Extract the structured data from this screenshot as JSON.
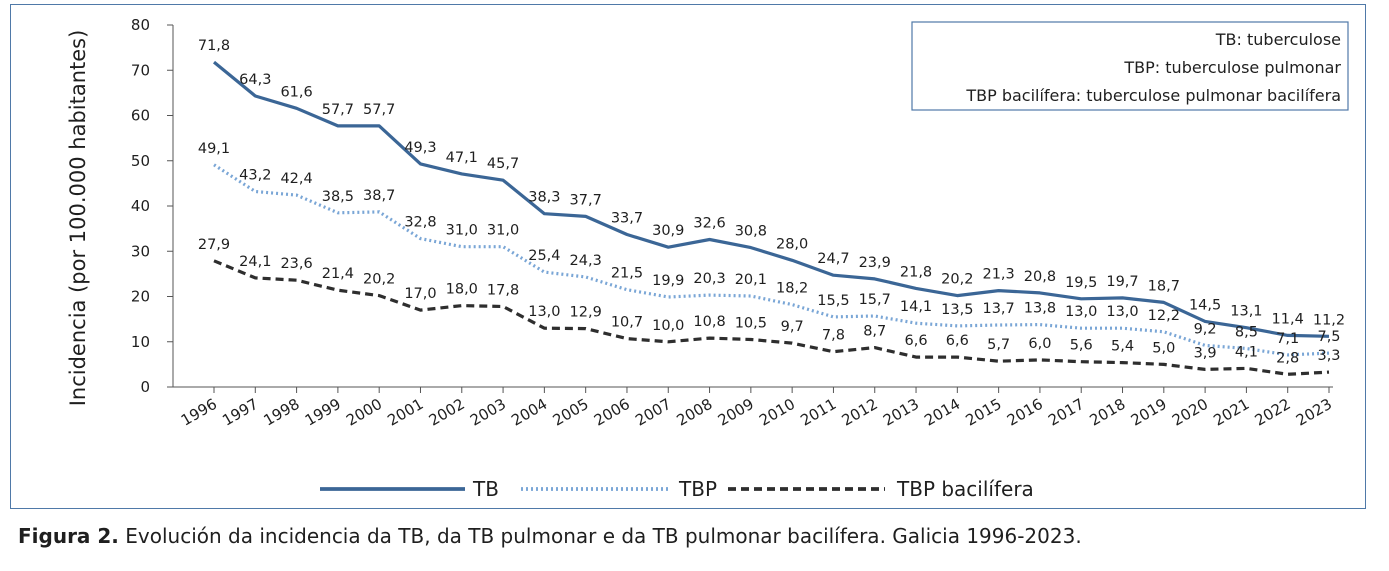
{
  "chart_data": {
    "type": "line",
    "title": "",
    "xlabel": "",
    "ylabel": "Incidencia (por 100.000 habitantes)",
    "ylim": [
      0,
      80
    ],
    "yticks": [
      0,
      10,
      20,
      30,
      40,
      50,
      60,
      70,
      80
    ],
    "categories": [
      "1996",
      "1997",
      "1998",
      "1999",
      "2000",
      "2001",
      "2002",
      "2003",
      "2004",
      "2005",
      "2006",
      "2007",
      "2008",
      "2009",
      "2010",
      "2011",
      "2012",
      "2013",
      "2014",
      "2015",
      "2016",
      "2017",
      "2018",
      "2019",
      "2020",
      "2021",
      "2022",
      "2023"
    ],
    "series": [
      {
        "name": "TB",
        "style": "solid",
        "color": "#3b6696",
        "values": [
          71.8,
          64.3,
          61.6,
          57.7,
          57.7,
          49.3,
          47.1,
          45.7,
          38.3,
          37.7,
          33.7,
          30.9,
          32.6,
          30.8,
          28.0,
          24.7,
          23.9,
          21.8,
          20.2,
          21.3,
          20.8,
          19.5,
          19.7,
          18.7,
          14.5,
          13.1,
          11.4,
          11.2
        ],
        "labels": [
          "71,8",
          "64,3",
          "61,6",
          "57,7",
          "57,7",
          "49,3",
          "47,1",
          "45,7",
          "38,3",
          "37,7",
          "33,7",
          "30,9",
          "32,6",
          "30,8",
          "28,0",
          "24,7",
          "23,9",
          "21,8",
          "20,2",
          "21,3",
          "20,8",
          "19,5",
          "19,7",
          "18,7",
          "14,5",
          "13,1",
          "11,4",
          "11,2"
        ]
      },
      {
        "name": "TBP",
        "style": "dotted",
        "color": "#7aa6d6",
        "values": [
          49.1,
          43.2,
          42.4,
          38.5,
          38.7,
          32.8,
          31.0,
          31.0,
          25.4,
          24.3,
          21.5,
          19.9,
          20.3,
          20.1,
          18.2,
          15.5,
          15.7,
          14.1,
          13.5,
          13.7,
          13.8,
          13.0,
          13.0,
          12.2,
          9.2,
          8.5,
          7.1,
          7.5
        ],
        "labels": [
          "49,1",
          "43,2",
          "42,4",
          "38,5",
          "38,7",
          "32,8",
          "31,0",
          "31,0",
          "25,4",
          "24,3",
          "21,5",
          "19,9",
          "20,3",
          "20,1",
          "18,2",
          "15,5",
          "15,7",
          "14,1",
          "13,5",
          "13,7",
          "13,8",
          "13,0",
          "13,0",
          "12,2",
          "9,2",
          "8,5",
          "7,1",
          "7,5"
        ]
      },
      {
        "name": "TBP bacilífera",
        "style": "dashed",
        "color": "#2e2e2e",
        "values": [
          27.9,
          24.1,
          23.6,
          21.4,
          20.2,
          17.0,
          18.0,
          17.8,
          13.0,
          12.9,
          10.7,
          10.0,
          10.8,
          10.5,
          9.7,
          7.8,
          8.7,
          6.6,
          6.6,
          5.7,
          6.0,
          5.6,
          5.4,
          5.0,
          3.9,
          4.1,
          2.8,
          3.3
        ],
        "labels": [
          "27,9",
          "24,1",
          "23,6",
          "21,4",
          "20,2",
          "17,0",
          "18,0",
          "17,8",
          "13,0",
          "12,9",
          "10,7",
          "10,0",
          "10,8",
          "10,5",
          "9,7",
          "7,8",
          "8,7",
          "6,6",
          "6,6",
          "5,7",
          "6,0",
          "5,6",
          "5,4",
          "5,0",
          "3,9",
          "4,1",
          "2,8",
          "3,3"
        ]
      }
    ],
    "legend": [
      "TB",
      "TBP",
      "TBP bacilífera"
    ],
    "legend_position": "bottom",
    "annotations": [
      "TB: tuberculose",
      "TBP: tuberculose pulmonar",
      "TBP bacilífera: tuberculose pulmonar bacilífera"
    ],
    "grid": false
  },
  "caption": {
    "label": "Figura 2.",
    "text": " Evolución da incidencia da TB, da TB pulmonar e da TB pulmonar bacilífera. Galicia 1996-2023."
  }
}
